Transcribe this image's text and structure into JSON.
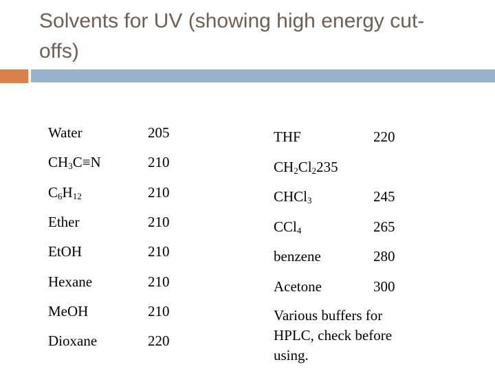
{
  "slide": {
    "title": "Solvents for UV (showing high energy cut-offs)"
  },
  "colors": {
    "title_text": "#6E5F55",
    "accent_orange": "#DB8049",
    "accent_blue": "#96B4CF",
    "body_text": "#000000",
    "background": "#FFFFFF"
  },
  "solvent_table": {
    "left_column": [
      {
        "formula": [
          "Water"
        ],
        "cutoff": "205"
      },
      {
        "formula": [
          "CH",
          "3",
          "C≡N"
        ],
        "cutoff": "210"
      },
      {
        "formula": [
          "C",
          "6",
          "H",
          "12"
        ],
        "cutoff": "210"
      },
      {
        "formula": [
          "Ether"
        ],
        "cutoff": "210"
      },
      {
        "formula": [
          "EtOH"
        ],
        "cutoff": "210"
      },
      {
        "formula": [
          "Hexane"
        ],
        "cutoff": "210"
      },
      {
        "formula": [
          "MeOH"
        ],
        "cutoff": "210"
      },
      {
        "formula": [
          "Dioxane"
        ],
        "cutoff": "220"
      }
    ],
    "right_column": [
      {
        "formula": [
          "THF"
        ],
        "cutoff": "220"
      },
      {
        "formula": [
          "CH",
          "2",
          "Cl",
          "2",
          "235"
        ],
        "cutoff": ""
      },
      {
        "formula": [
          "CHCl",
          "3"
        ],
        "cutoff": "245"
      },
      {
        "formula": [
          "CCl",
          "4"
        ],
        "cutoff": "265"
      },
      {
        "formula": [
          "benzene"
        ],
        "cutoff": "280"
      },
      {
        "formula": [
          "Acetone"
        ],
        "cutoff": "300"
      }
    ],
    "note": "Various buffers for HPLC, check before using."
  }
}
